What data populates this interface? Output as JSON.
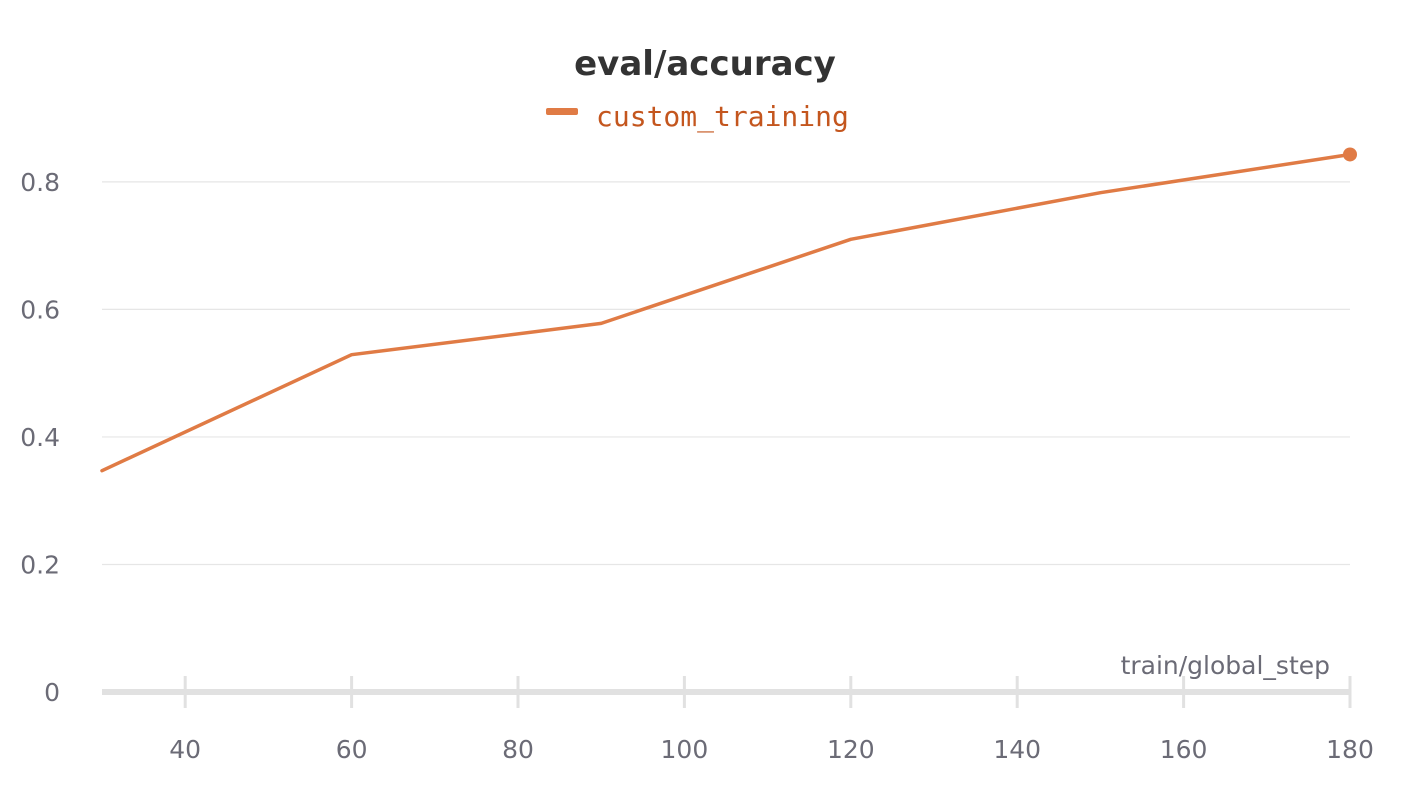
{
  "chart_data": {
    "type": "line",
    "title": "eval/accuracy",
    "xlabel": "train/global_step",
    "ylabel": "",
    "xlim": [
      30,
      180
    ],
    "ylim": [
      0,
      0.85
    ],
    "x_ticks": [
      40,
      60,
      80,
      100,
      120,
      140,
      160,
      180
    ],
    "y_ticks": [
      0,
      0.2,
      0.4,
      0.6,
      0.8
    ],
    "grid": true,
    "legend_position": "top-center",
    "series": [
      {
        "name": "custom_training",
        "color": "#e07b45",
        "x": [
          30,
          60,
          90,
          120,
          150,
          180
        ],
        "values": [
          0.347,
          0.529,
          0.578,
          0.71,
          0.783,
          0.843
        ]
      }
    ]
  }
}
